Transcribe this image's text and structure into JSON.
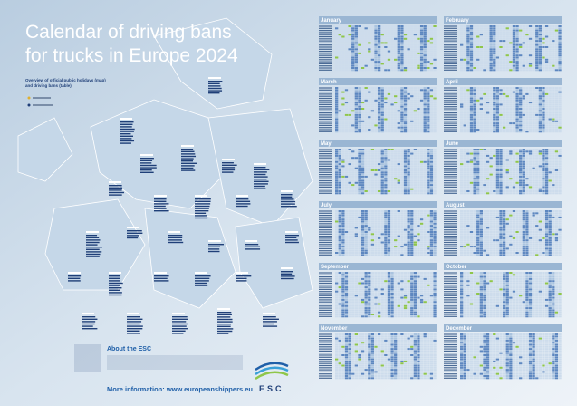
{
  "header": {
    "title_lines": [
      "Calendar of driving bans",
      "for trucks in Europe 2024"
    ],
    "subtitle_lines": [
      "Overview of official public holidays (map)",
      "and driving bans (table)"
    ]
  },
  "months": [
    "January",
    "February",
    "March",
    "April",
    "May",
    "June",
    "July",
    "August",
    "September",
    "October",
    "November",
    "December"
  ],
  "about": {
    "title": "About the ESC",
    "link": "More information: www.europeanshippers.eu"
  },
  "logo": {
    "text": "ESC"
  }
}
